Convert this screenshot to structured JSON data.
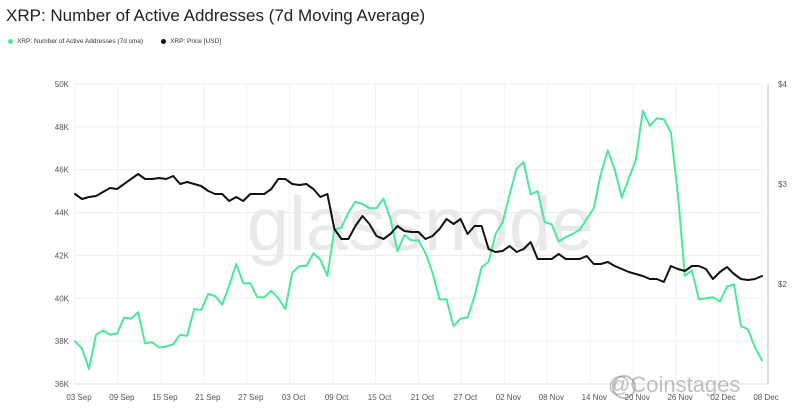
{
  "chart_data": {
    "type": "line",
    "title": "XRP: Number of Active Addresses (7d Moving Average)",
    "watermark": "glassnode",
    "brand_watermark": "@Coinstages",
    "x_tick_labels": [
      "03 Sep",
      "09 Sep",
      "15 Sep",
      "21 Sep",
      "27 Sep",
      "03 Oct",
      "09 Oct",
      "15 Oct",
      "21 Oct",
      "27 Oct",
      "02 Nov",
      "08 Nov",
      "14 Nov",
      "20 Nov",
      "26 Nov",
      "02 Dec",
      "08 Dec"
    ],
    "y_left": {
      "ticks": [
        36000,
        38000,
        40000,
        42000,
        44000,
        46000,
        48000,
        50000
      ],
      "tick_labels": [
        "36K",
        "38K",
        "40K",
        "42K",
        "44K",
        "46K",
        "48K",
        "50K"
      ],
      "range": [
        36000,
        50000
      ]
    },
    "y_right": {
      "ticks": [
        2,
        3,
        4
      ],
      "tick_labels": [
        "$2",
        "$3",
        "$4"
      ],
      "range": [
        1.0,
        4.0
      ]
    },
    "grid": true,
    "legend_position": "top-left",
    "series": [
      {
        "name": "XRP: Number of Active Addresses (7d sma)",
        "axis": "left",
        "color": "#4be89a",
        "values": [
          38000,
          37650,
          36700,
          38300,
          38500,
          38300,
          38350,
          39100,
          39050,
          39350,
          37900,
          37950,
          37700,
          37750,
          37850,
          38300,
          38250,
          39500,
          39450,
          40200,
          40100,
          39700,
          40600,
          41600,
          40700,
          40700,
          40050,
          40050,
          40350,
          40000,
          39500,
          41200,
          41500,
          41500,
          42100,
          41800,
          41050,
          43200,
          43300,
          44000,
          44500,
          44400,
          44200,
          44200,
          44650,
          43700,
          42200,
          42950,
          42700,
          42700,
          42100,
          41200,
          39950,
          39950,
          38700,
          39050,
          39100,
          40100,
          41450,
          41700,
          43000,
          43550,
          44850,
          46050,
          46350,
          44850,
          45000,
          43550,
          43450,
          42650,
          42850,
          43000,
          43200,
          43700,
          44200,
          45800,
          46900,
          46000,
          44700,
          45600,
          46450,
          48750,
          48050,
          48400,
          48350,
          47750,
          44850,
          41050,
          41300,
          39950,
          40000,
          40050,
          39850,
          40550,
          40650,
          38700,
          38550,
          37700,
          37100
        ]
      },
      {
        "name": "XRP: Price [USD]",
        "axis": "right",
        "color": "#111111",
        "values": [
          2.9,
          2.85,
          2.87,
          2.88,
          2.92,
          2.96,
          2.95,
          3.0,
          3.05,
          3.1,
          3.05,
          3.05,
          3.06,
          3.05,
          3.08,
          3.0,
          3.02,
          3.0,
          2.98,
          2.93,
          2.9,
          2.9,
          2.83,
          2.87,
          2.83,
          2.9,
          2.9,
          2.9,
          2.95,
          3.05,
          3.05,
          3.0,
          2.99,
          3.0,
          2.95,
          2.87,
          2.9,
          2.55,
          2.45,
          2.45,
          2.58,
          2.68,
          2.6,
          2.48,
          2.45,
          2.5,
          2.58,
          2.53,
          2.52,
          2.52,
          2.45,
          2.48,
          2.55,
          2.65,
          2.6,
          2.65,
          2.5,
          2.58,
          2.58,
          2.35,
          2.32,
          2.33,
          2.38,
          2.32,
          2.35,
          2.42,
          2.25,
          2.25,
          2.25,
          2.3,
          2.25,
          2.25,
          2.25,
          2.28,
          2.2,
          2.2,
          2.22,
          2.18,
          2.15,
          2.12,
          2.1,
          2.08,
          2.05,
          2.05,
          2.02,
          2.18,
          2.15,
          2.13,
          2.18,
          2.18,
          2.15,
          2.05,
          2.12,
          2.17,
          2.1,
          2.05,
          2.04,
          2.05,
          2.08
        ]
      }
    ]
  }
}
